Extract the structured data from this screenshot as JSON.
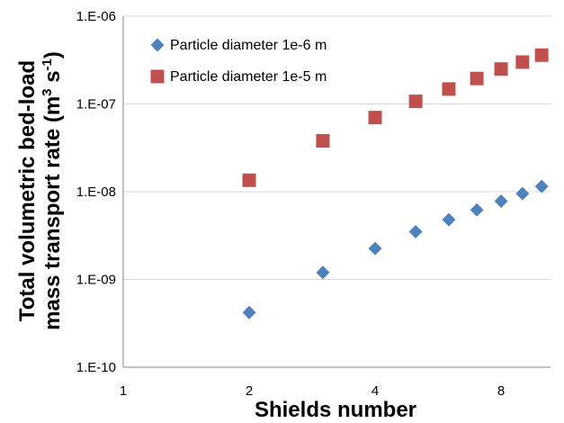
{
  "chart_data": {
    "type": "scatter",
    "x_scale": "log2",
    "y_scale": "log10",
    "xlim": [
      1,
      10.5
    ],
    "ylim": [
      1e-10,
      1e-06
    ],
    "x_ticks": [
      1,
      2,
      4,
      8
    ],
    "x_tick_labels": [
      "1",
      "2",
      "4",
      "8"
    ],
    "y_ticks": [
      1e-10,
      1e-09,
      1e-08,
      1e-07,
      1e-06
    ],
    "y_tick_labels": [
      "1.E-10",
      "1.E-09",
      "1.E-08",
      "1.E-07",
      "1.E-06"
    ],
    "grid": "horizontal",
    "legend_position": "top-left",
    "xlabel": "Shields number",
    "ylabel_line1": "Total volumetric bed-load",
    "ylabel_line2_prefix": "mass transport rate (m",
    "ylabel_sup1": "3",
    "ylabel_mid": " s",
    "ylabel_sup2": "-1",
    "ylabel_suffix": ")",
    "series": [
      {
        "name": "Particle diameter 1e-6 m",
        "marker": "diamond",
        "color": "#4f81bd",
        "x": [
          2.0,
          3.0,
          4.0,
          5.0,
          6.0,
          7.0,
          8.0,
          9.0,
          10.0
        ],
        "y": [
          4.2e-10,
          1.2e-09,
          2.25e-09,
          3.5e-09,
          4.8e-09,
          6.2e-09,
          7.8e-09,
          9.5e-09,
          1.15e-08
        ]
      },
      {
        "name": "Particle diameter 1e-5 m",
        "marker": "square",
        "color": "#c0504d",
        "x": [
          2.0,
          3.0,
          4.0,
          5.0,
          6.0,
          7.0,
          8.0,
          9.0,
          10.0
        ],
        "y": [
          1.35e-08,
          3.8e-08,
          7e-08,
          1.07e-07,
          1.48e-07,
          1.95e-07,
          2.5e-07,
          3e-07,
          3.6e-07
        ]
      }
    ]
  }
}
